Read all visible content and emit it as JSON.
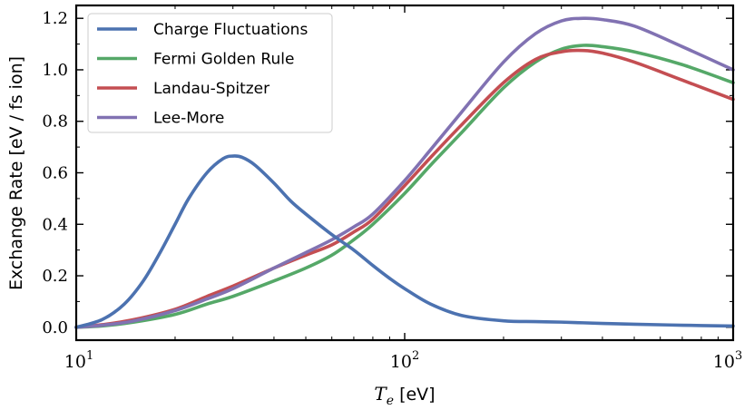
{
  "chart_data": {
    "type": "line",
    "title": "",
    "xlabel": {
      "symbol": "T",
      "subscript": "e",
      "unit": " [eV]"
    },
    "ylabel": "Exchange Rate [eV / fs ion]",
    "xscale": "log",
    "xlim": [
      10,
      1000
    ],
    "ylim": [
      -0.05,
      1.25
    ],
    "xticks": [
      {
        "value": 10,
        "base": "10",
        "exp": "1"
      },
      {
        "value": 100,
        "base": "10",
        "exp": "2"
      },
      {
        "value": 1000,
        "base": "10",
        "exp": "3"
      }
    ],
    "yticks": [
      {
        "value": 0.0,
        "label": "0.0"
      },
      {
        "value": 0.2,
        "label": "0.2"
      },
      {
        "value": 0.4,
        "label": "0.4"
      },
      {
        "value": 0.6,
        "label": "0.6"
      },
      {
        "value": 0.8,
        "label": "0.8"
      },
      {
        "value": 1.0,
        "label": "1.0"
      },
      {
        "value": 1.2,
        "label": "1.2"
      }
    ],
    "legend_position": "top-left",
    "grid": false,
    "series": [
      {
        "name": "Charge Fluctuations",
        "color": "#4c72b0",
        "x": [
          10,
          12,
          14,
          16,
          18,
          20,
          22,
          25,
          28,
          30,
          32,
          35,
          40,
          45,
          50,
          60,
          70,
          80,
          90,
          100,
          120,
          150,
          200,
          250,
          300,
          400,
          500,
          700,
          1000
        ],
        "y": [
          0.0,
          0.03,
          0.09,
          0.18,
          0.29,
          0.4,
          0.5,
          0.6,
          0.655,
          0.665,
          0.66,
          0.63,
          0.56,
          0.49,
          0.44,
          0.36,
          0.3,
          0.24,
          0.19,
          0.15,
          0.09,
          0.045,
          0.025,
          0.022,
          0.02,
          0.015,
          0.012,
          0.008,
          0.005
        ]
      },
      {
        "name": "Fermi Golden Rule",
        "color": "#55a868",
        "x": [
          10,
          12,
          15,
          20,
          25,
          30,
          40,
          50,
          60,
          70,
          80,
          100,
          120,
          150,
          200,
          250,
          300,
          350,
          400,
          500,
          700,
          1000
        ],
        "y": [
          0.0,
          0.005,
          0.02,
          0.05,
          0.09,
          0.12,
          0.18,
          0.23,
          0.28,
          0.34,
          0.4,
          0.52,
          0.63,
          0.76,
          0.93,
          1.03,
          1.08,
          1.095,
          1.09,
          1.07,
          1.02,
          0.95
        ]
      },
      {
        "name": "Landau-Spitzer",
        "color": "#c44e52",
        "x": [
          10,
          12,
          15,
          20,
          25,
          30,
          40,
          50,
          60,
          70,
          80,
          100,
          120,
          150,
          200,
          250,
          300,
          350,
          400,
          500,
          700,
          1000
        ],
        "y": [
          0.0,
          0.01,
          0.03,
          0.07,
          0.12,
          0.16,
          0.23,
          0.28,
          0.32,
          0.37,
          0.42,
          0.55,
          0.66,
          0.79,
          0.95,
          1.04,
          1.07,
          1.075,
          1.065,
          1.03,
          0.96,
          0.885
        ]
      },
      {
        "name": "Lee-More",
        "color": "#8172b2",
        "x": [
          10,
          12,
          15,
          20,
          25,
          30,
          40,
          50,
          60,
          70,
          80,
          100,
          120,
          150,
          200,
          250,
          300,
          350,
          400,
          500,
          700,
          1000
        ],
        "y": [
          0.0,
          0.008,
          0.025,
          0.065,
          0.11,
          0.15,
          0.23,
          0.29,
          0.34,
          0.39,
          0.44,
          0.57,
          0.69,
          0.84,
          1.03,
          1.14,
          1.19,
          1.2,
          1.195,
          1.17,
          1.09,
          1.0
        ]
      }
    ]
  }
}
